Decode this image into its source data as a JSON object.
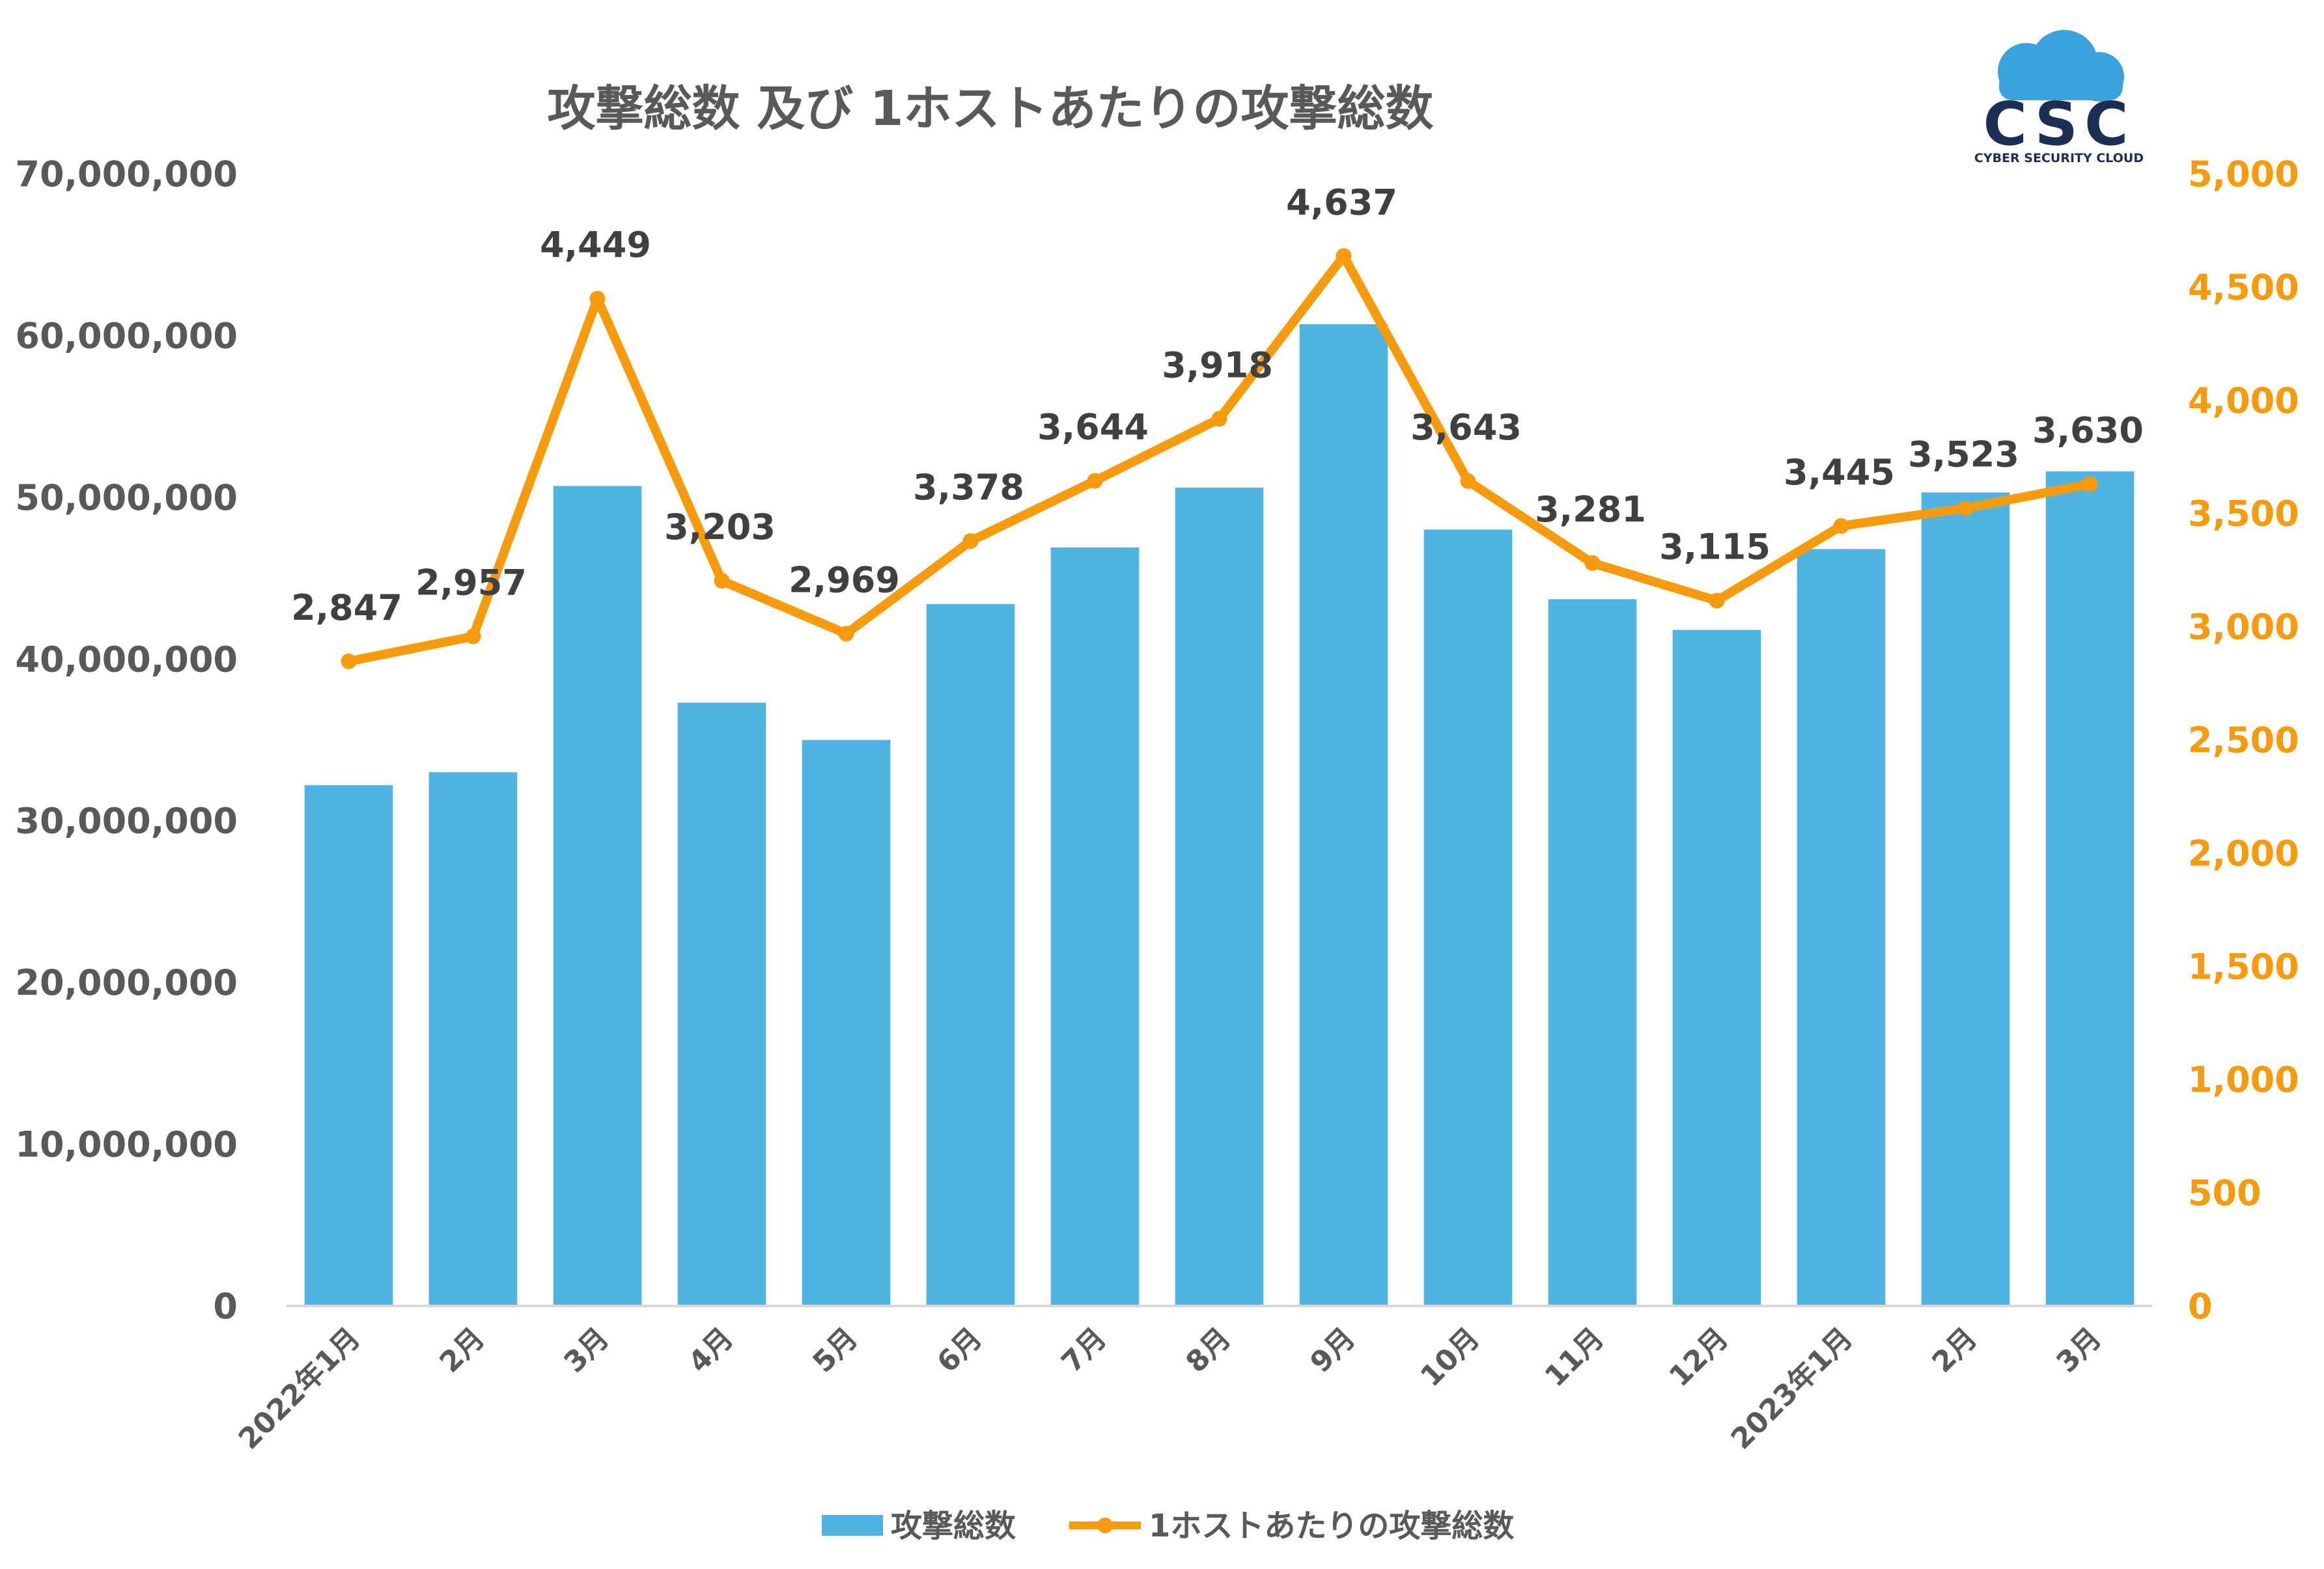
{
  "colors": {
    "bars": "#4fb4e2",
    "line": "#f79b0c",
    "axis_text": "#595959",
    "label_text": "#404040",
    "logo_navy": "#1b2f55",
    "logo_blue": "#3aa3dd"
  },
  "logo": {
    "mark": "CSC",
    "tagline": "CYBER SECURITY CLOUD",
    "icon": "cloud-icon"
  },
  "chart_data": {
    "type": "bar",
    "title": "攻撃総数 及び 1ホストあたりの攻撃総数",
    "categories": [
      "2022年1月",
      "2月",
      "3月",
      "4月",
      "5月",
      "6月",
      "7月",
      "8月",
      "9月",
      "10月",
      "11月",
      "12月",
      "2023年1月",
      "2月",
      "3月"
    ],
    "series": [
      {
        "name": "攻撃総数",
        "type": "bar",
        "axis": "left",
        "values": [
          32200000,
          33000000,
          50700000,
          37300000,
          35000000,
          43400000,
          46900000,
          50600000,
          60700000,
          48000000,
          43700000,
          41800000,
          46800000,
          50300000,
          51600000
        ]
      },
      {
        "name": "1ホストあたりの攻撃総数",
        "type": "line",
        "axis": "right",
        "values": [
          2847,
          2957,
          4449,
          3203,
          2969,
          3378,
          3644,
          3918,
          4637,
          3643,
          3281,
          3115,
          3445,
          3523,
          3630
        ],
        "labels": [
          "2,847",
          "2,957",
          "4,449",
          "3,203",
          "2,969",
          "3,378",
          "3,644",
          "3,918",
          "4,637",
          "3,643",
          "3,281",
          "3,115",
          "3,445",
          "3,523",
          "3,630"
        ]
      }
    ],
    "y_left": {
      "range": [
        0,
        70000000
      ],
      "ticks": [
        "0",
        "10,000,000",
        "20,000,000",
        "30,000,000",
        "40,000,000",
        "50,000,000",
        "60,000,000",
        "70,000,000"
      ]
    },
    "y_right": {
      "range": [
        0,
        5000
      ],
      "ticks": [
        "0",
        "500",
        "1,000",
        "1,500",
        "2,000",
        "2,500",
        "3,000",
        "3,500",
        "4,000",
        "4,500",
        "5,000"
      ]
    },
    "grid": false,
    "legend": "bottom"
  }
}
